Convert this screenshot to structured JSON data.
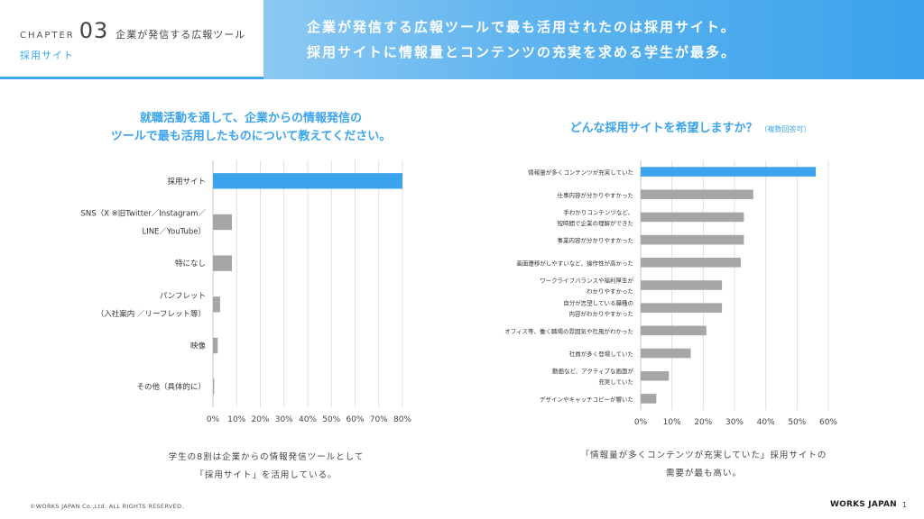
{
  "header": {
    "chapter_word": "CHAPTER",
    "chapter_number": "03",
    "chapter_title": "企業が発信する広報ツール",
    "chapter_sub": "採用サイト",
    "headline_line1": "企業が発信する広報ツールで最も活用されたのは採用サイト。",
    "headline_line2": "採用サイトに情報量とコンテンツの充実を求める学生が最多。"
  },
  "left_panel": {
    "title_line1": "就職活動を通して、企業からの情報発信の",
    "title_line2": "ツールで最も活用したものについて教えてください。",
    "caption_line1": "学生の8割は企業からの情報発信ツールとして",
    "caption_line2": "「採用サイト」を活用している。"
  },
  "right_panel": {
    "title": "どんな採用サイトを希望しますか？",
    "title_note": "（複数回答可）",
    "caption_line1": "「情報量が多くコンテンツが充実していた」採用サイトの",
    "caption_line2": "需要が最も高い。"
  },
  "colors": {
    "accent": "#3ba4ec",
    "bar_gray": "#a6a6a6",
    "grid": "#d9d9d9"
  },
  "chart_data": [
    {
      "type": "bar",
      "orientation": "horizontal",
      "categories": [
        [
          "採用サイト"
        ],
        [
          "SNS（X ※旧Twitter／Instagram／",
          "LINE／YouTube）"
        ],
        [
          "特になし"
        ],
        [
          "パンフレット",
          "（入社案内 ／リーフレット等）"
        ],
        [
          "映像"
        ],
        [
          "その他（具体的に）"
        ]
      ],
      "values": [
        80,
        8,
        8,
        3,
        2,
        0.5
      ],
      "highlight_index": 0,
      "xlim": [
        0,
        80
      ],
      "xticks": [
        "0%",
        "10%",
        "20%",
        "30%",
        "40%",
        "50%",
        "60%",
        "70%",
        "80%"
      ],
      "grid": true
    },
    {
      "type": "bar",
      "orientation": "horizontal",
      "categories": [
        [
          "情報量が多くコンテンツが充実していた"
        ],
        [
          "仕事内容が分かりやすかった"
        ],
        [
          "手わかりコンテンツなど、",
          "短時間で企業の理解ができた"
        ],
        [
          "事業内容が分かりやすかった"
        ],
        [
          "画面遷移がしやすいなど、操作性が高かった"
        ],
        [
          "ワークライフバランスや福利厚生が",
          "わかりやすかった"
        ],
        [
          "自分が志望している職種の",
          "内容がわかりやすかった"
        ],
        [
          "オフィス等、働く職場の雰囲気や社風がわかった"
        ],
        [
          "社員が多く登場していた"
        ],
        [
          "動画など、アクティブな画面が",
          "充実していた"
        ],
        [
          "デザインやキャッチコピーが響いた"
        ]
      ],
      "values": [
        56,
        36,
        33,
        33,
        32,
        26,
        26,
        21,
        16,
        9,
        5
      ],
      "highlight_index": 0,
      "xlim": [
        0,
        60
      ],
      "xticks": [
        "0%",
        "10%",
        "20%",
        "30%",
        "40%",
        "50%",
        "60%"
      ],
      "grid": true
    }
  ],
  "footer": {
    "copyright": "©WORKS JAPAN Co.,Ltd. ALL RIGHTS RESERVED.",
    "logo": "WORKS JAPAN",
    "page": "1"
  }
}
